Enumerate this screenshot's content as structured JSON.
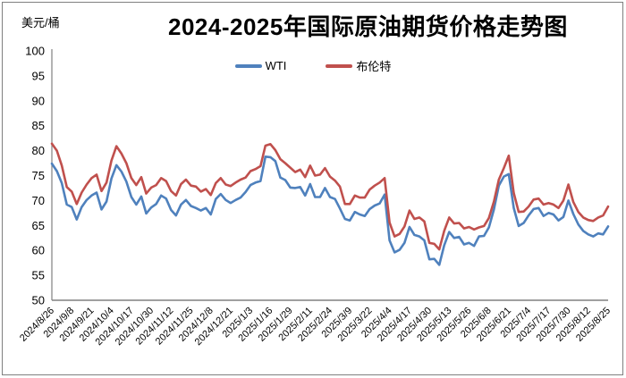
{
  "page": {
    "background": "#ffffff",
    "border_color": "#7f7f7f"
  },
  "header": {
    "title": "2024-2025年国际原油期货价格走势图",
    "unit_label": "美元/桶"
  },
  "chart_data": {
    "type": "line",
    "title": "2024-2025年国际原油期货价格走势图",
    "ylabel": "美元/桶",
    "xlabel": "",
    "ylim": [
      50,
      100
    ],
    "ytick_step": 5,
    "yticks": [
      50,
      55,
      60,
      65,
      70,
      75,
      80,
      85,
      90,
      95,
      100
    ],
    "grid": false,
    "legend_position": "top-center",
    "axis_color": "#808080",
    "x_labels": [
      "2024/8/26",
      "2024/9/8",
      "2024/9/21",
      "2024/10/4",
      "2024/10/17",
      "2024/10/30",
      "2024/11/12",
      "2024/11/25",
      "2024/12/8",
      "2024/12/21",
      "2025/1/3",
      "2025/1/16",
      "2025/1/29",
      "2025/2/11",
      "2025/2/24",
      "2025/3/9",
      "2025/3/22",
      "2025/4/4",
      "2025/4/17",
      "2025/4/30",
      "2025/5/13",
      "2025/5/26",
      "2025/6/8",
      "2025/6/21",
      "2025/7/4",
      "2025/7/17",
      "2025/7/30",
      "2025/8/12",
      "2025/8/25"
    ],
    "points_per_label_interval": 4,
    "series": [
      {
        "name": "WTI",
        "color": "#4F81BD",
        "values": [
          77.4,
          75.9,
          73.5,
          69.2,
          68.7,
          66.2,
          68.7,
          70.1,
          71.0,
          71.6,
          68.2,
          69.8,
          74.4,
          77.1,
          75.8,
          73.8,
          70.7,
          69.2,
          70.8,
          67.4,
          68.6,
          69.3,
          71.0,
          70.4,
          68.1,
          67.0,
          69.2,
          70.1,
          68.9,
          68.5,
          68.0,
          68.5,
          67.2,
          70.3,
          71.3,
          70.1,
          69.5,
          70.1,
          70.6,
          71.7,
          73.1,
          73.6,
          73.9,
          78.8,
          78.7,
          77.9,
          74.6,
          74.1,
          72.6,
          72.5,
          72.7,
          71.0,
          73.3,
          70.7,
          70.7,
          72.5,
          70.7,
          70.3,
          68.4,
          66.3,
          66.0,
          67.7,
          67.2,
          66.9,
          68.3,
          69.0,
          69.4,
          71.2,
          62.0,
          59.6,
          60.1,
          61.5,
          64.7,
          63.1,
          62.8,
          62.0,
          58.2,
          58.3,
          57.1,
          61.0,
          63.7,
          62.5,
          62.7,
          61.2,
          61.5,
          60.9,
          62.8,
          62.9,
          64.6,
          68.2,
          73.0,
          74.8,
          75.3,
          68.5,
          64.9,
          65.5,
          67.0,
          68.3,
          68.5,
          66.9,
          67.5,
          67.2,
          66.0,
          66.7,
          70.0,
          67.3,
          65.2,
          63.9,
          63.2,
          62.8,
          63.4,
          63.2,
          64.8
        ]
      },
      {
        "name": "布伦特",
        "color": "#C0504D",
        "values": [
          81.4,
          80.0,
          77.0,
          72.7,
          71.8,
          69.3,
          71.6,
          73.2,
          74.5,
          75.2,
          71.9,
          73.6,
          78.0,
          80.9,
          79.4,
          77.5,
          74.5,
          73.1,
          74.7,
          71.4,
          72.6,
          73.1,
          74.5,
          73.9,
          71.9,
          71.0,
          73.3,
          74.2,
          73.0,
          72.8,
          71.8,
          72.3,
          71.1,
          73.5,
          74.5,
          73.2,
          72.9,
          73.6,
          74.2,
          74.6,
          75.9,
          76.3,
          76.9,
          81.0,
          81.3,
          80.1,
          78.3,
          77.5,
          76.6,
          75.7,
          76.2,
          74.7,
          77.0,
          75.0,
          75.2,
          76.5,
          74.8,
          74.0,
          72.8,
          69.3,
          69.3,
          71.0,
          70.6,
          70.6,
          72.2,
          73.0,
          73.6,
          74.5,
          65.6,
          62.8,
          63.3,
          64.8,
          68.0,
          66.3,
          66.6,
          65.8,
          61.5,
          61.3,
          60.2,
          63.9,
          66.6,
          65.4,
          65.5,
          64.4,
          64.7,
          64.2,
          64.6,
          64.9,
          66.5,
          69.8,
          74.2,
          76.5,
          79.0,
          71.5,
          67.7,
          67.8,
          68.8,
          70.2,
          70.4,
          69.2,
          69.5,
          69.2,
          68.5,
          70.0,
          73.2,
          69.7,
          67.7,
          66.6,
          66.1,
          65.9,
          66.6,
          67.0,
          68.8
        ]
      }
    ]
  }
}
